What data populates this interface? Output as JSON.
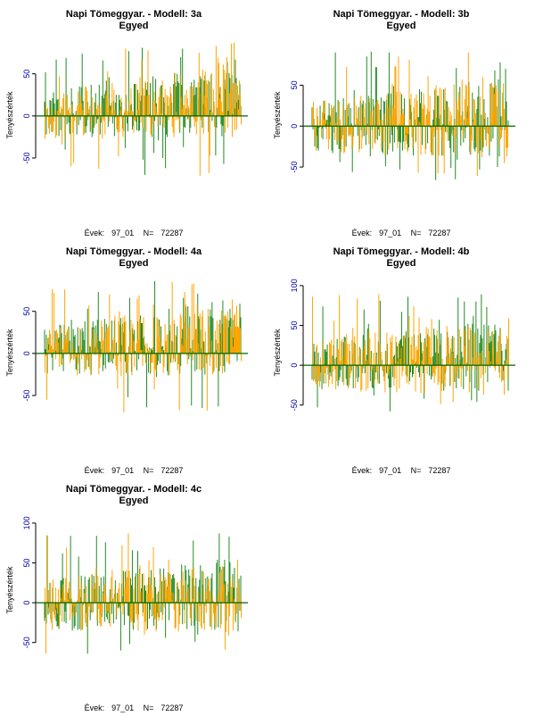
{
  "colors": {
    "series_a": "#228B22",
    "series_b": "#FFA500",
    "baseline": "#006400",
    "tick_text": "#0000A0"
  },
  "footer": {
    "years_label": "Évek:",
    "years_value": "97_01",
    "n_label": "N=",
    "n_value": "72287"
  },
  "chart_data": [
    {
      "type": "line",
      "title": "Napi Tömeggyar. - Modell: 3a",
      "subtitle": "Egyed",
      "ylabel": "Tenyészérték",
      "xlabel": "",
      "yticks": [
        -50,
        0,
        50
      ],
      "ylim": [
        -85,
        90
      ],
      "baseline": 0,
      "series": [
        {
          "values": []
        },
        {
          "values": []
        }
      ],
      "trend": {
        "start_low": -28,
        "start_high": 28,
        "end_low": -25,
        "end_high": 68,
        "min": -82,
        "max": 90
      }
    },
    {
      "type": "line",
      "title": "Napi Tömeggyar. - Modell: 3b",
      "subtitle": "Egyed",
      "ylabel": "Tenyészérték",
      "xlabel": "",
      "yticks": [
        -50,
        0,
        50
      ],
      "ylim": [
        -75,
        105
      ],
      "baseline": 0,
      "series": [
        {
          "values": []
        },
        {
          "values": []
        }
      ],
      "trend": {
        "start_low": -32,
        "start_high": 30,
        "end_low": -40,
        "end_high": 60,
        "min": -70,
        "max": 98
      }
    },
    {
      "type": "line",
      "title": "Napi Tömeggyar. - Modell: 4a",
      "subtitle": "Egyed",
      "ylabel": "Tenyészérték",
      "xlabel": "",
      "yticks": [
        -50,
        0,
        50
      ],
      "ylim": [
        -85,
        90
      ],
      "baseline": 0,
      "series": [
        {
          "values": []
        },
        {
          "values": []
        }
      ],
      "trend": {
        "start_low": -28,
        "start_high": 30,
        "end_low": -25,
        "end_high": 70,
        "min": -82,
        "max": 90
      }
    },
    {
      "type": "line",
      "title": "Napi Tömeggyar. - Modell: 4b",
      "subtitle": "Egyed",
      "ylabel": "Tenyészérték",
      "xlabel": "",
      "yticks": [
        -50,
        0,
        50,
        100
      ],
      "ylim": [
        -75,
        110
      ],
      "baseline": 0,
      "series": [
        {
          "values": []
        },
        {
          "values": []
        }
      ],
      "trend": {
        "start_low": -32,
        "start_high": 32,
        "end_low": -38,
        "end_high": 60,
        "min": -68,
        "max": 95
      }
    },
    {
      "type": "line",
      "title": "Napi Tömeggyar. - Modell: 4c",
      "subtitle": "Egyed",
      "ylabel": "Tenyészérték",
      "xlabel": "",
      "yticks": [
        -50,
        0,
        50,
        100
      ],
      "ylim": [
        -75,
        110
      ],
      "baseline": 0,
      "series": [
        {
          "values": []
        },
        {
          "values": []
        }
      ],
      "trend": {
        "start_low": -35,
        "start_high": 30,
        "end_low": -38,
        "end_high": 58,
        "min": -68,
        "max": 95
      }
    }
  ]
}
